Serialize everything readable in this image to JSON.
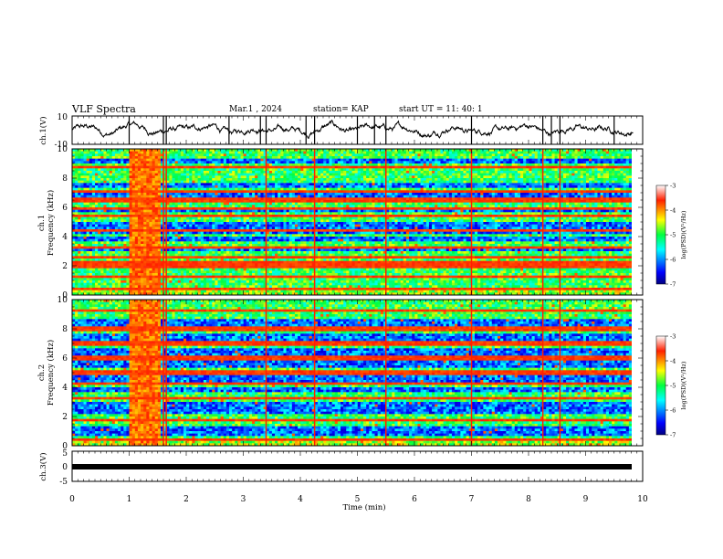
{
  "header": {
    "title": "VLF Spectra",
    "date": "Mar.1  , 2024",
    "station": "station= KAP",
    "start": "start  UT  =   11: 40: 1"
  },
  "chart_data": [
    {
      "type": "line",
      "panel": "ch1-waveform",
      "ylabel": "ch.1(V)",
      "ylim": [
        -10,
        10
      ],
      "yticks": [
        "10",
        "-10"
      ],
      "xlim": [
        0,
        9.83
      ],
      "description_values": {
        "mean": 0.5,
        "amplitude_range": [
          -6,
          6
        ]
      },
      "spike_times_min": [
        1.0,
        1.6,
        1.65,
        2.75,
        3.3,
        3.4,
        4.1,
        4.25,
        5.0,
        5.3,
        5.5,
        7.0,
        8.25,
        8.4,
        8.55,
        9.5
      ]
    },
    {
      "type": "heatmap",
      "panel": "ch1-spectrogram",
      "ylabel_1": "ch.1",
      "ylabel_2": "Frequency (kHz)",
      "ylim": [
        0,
        10
      ],
      "yticks": [
        "0",
        "2",
        "4",
        "6",
        "8",
        "10"
      ],
      "xlim": [
        0,
        9.83
      ],
      "colorbar": {
        "label": "log(PSD)(V²/Hz)",
        "ticks": [
          "-3",
          "-4",
          "-5",
          "-6",
          "-7"
        ],
        "range": [
          -7,
          -3
        ]
      },
      "blue_bands_khz": [
        [
          3.6,
          4.0
        ],
        [
          4.2,
          5.0
        ],
        [
          5.6,
          6.0
        ],
        [
          6.6,
          7.0
        ],
        [
          7.4,
          7.6
        ],
        [
          9.0,
          9.4
        ],
        [
          3.0,
          3.2
        ]
      ],
      "red_lines_khz": [
        0.4,
        1.2,
        2.0,
        2.3,
        2.6,
        3.3,
        4.4,
        5.4,
        5.9,
        6.5,
        7.1,
        8.8
      ],
      "burst_interval_min": [
        0.98,
        1.55
      ],
      "vertical_red_times_min": [
        1.6,
        1.65,
        3.4,
        4.25,
        5.5,
        7.0,
        8.25,
        8.55
      ]
    },
    {
      "type": "heatmap",
      "panel": "ch2-spectrogram",
      "ylabel_1": "ch.2",
      "ylabel_2": "Frequency (kHz)",
      "ylim": [
        0,
        10
      ],
      "yticks": [
        "0",
        "2",
        "4",
        "6",
        "8",
        "10"
      ],
      "xlim": [
        0,
        9.83
      ],
      "colorbar": {
        "label": "log(PSD)(V²/Hz)",
        "ticks": [
          "-3",
          "-4",
          "-5",
          "-6",
          "-7"
        ],
        "range": [
          -7,
          -3
        ]
      },
      "blue_bands_khz": [
        [
          2.2,
          3.0
        ],
        [
          3.6,
          4.0
        ],
        [
          4.4,
          5.0
        ],
        [
          5.4,
          5.8
        ],
        [
          6.2,
          6.6
        ],
        [
          7.2,
          7.6
        ],
        [
          8.2,
          8.6
        ],
        [
          0.6,
          1.4
        ]
      ],
      "red_lines_khz": [
        0.4,
        1.8,
        3.3,
        4.2,
        5.0,
        6.0,
        7.0,
        8.0,
        9.2
      ],
      "burst_interval_min": [
        0.98,
        1.55
      ],
      "vertical_red_times_min": [
        1.6,
        1.65,
        3.4,
        4.25,
        5.5,
        7.0,
        8.25,
        8.55
      ]
    },
    {
      "type": "line",
      "panel": "ch3-waveform",
      "ylabel": "ch.3(V)",
      "ylim": [
        -5,
        5
      ],
      "yticks": [
        "5",
        "0",
        "-5"
      ],
      "xlim": [
        0,
        9.83
      ],
      "xlabel": "Time  (min)",
      "xticks": [
        "0",
        "1",
        "2",
        "3",
        "4",
        "5",
        "6",
        "7",
        "8",
        "9",
        "10"
      ],
      "band_values": [
        -1.0,
        -0.4
      ]
    }
  ]
}
